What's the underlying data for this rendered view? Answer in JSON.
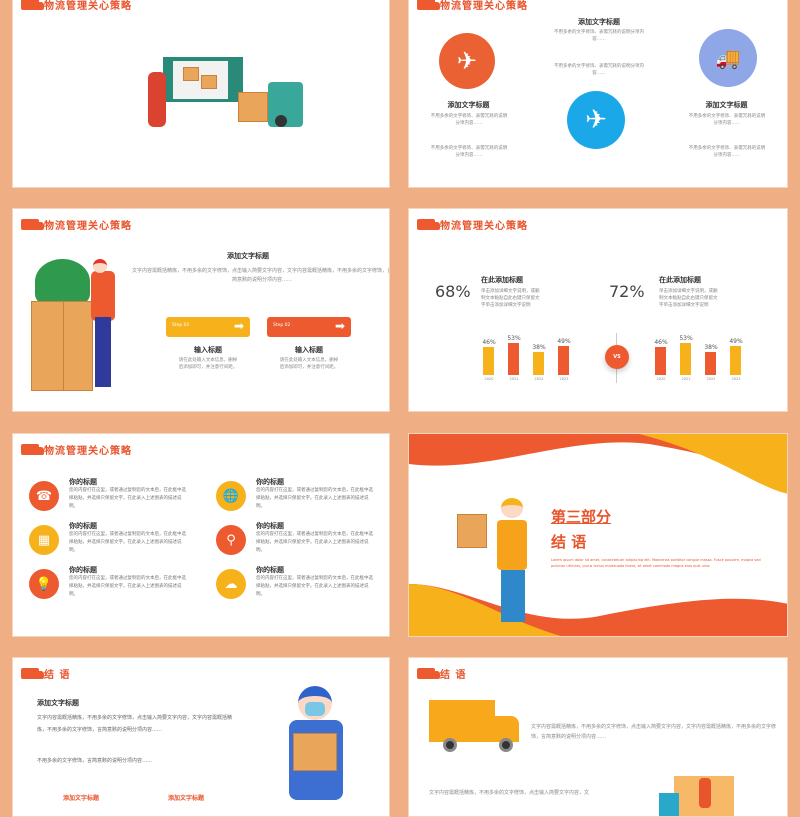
{
  "header_title": "物流管理关心策略",
  "closing_title": "结 语",
  "slide2": {
    "top_title": "添加文字标题",
    "left_title": "添加文字标题",
    "right_title": "添加文字标题",
    "small_text": "不用多余的文字修饰、表需冗耗的说明分项内容……"
  },
  "slide3": {
    "title": "添加文字标题",
    "body": "文字内容需概括精炼，不用多余的文字修饰，点击输入简要文字内容，文字内容需概括精炼，不用多余的文字修饰，言简意赅的说明分项内容……",
    "steps": [
      {
        "label": "Step 01",
        "title": "输入标题",
        "text": "请在此处输入文本信息，删掉后添加即可，并注意行间距。",
        "color": "#f7b21b"
      },
      {
        "label": "Step 02",
        "title": "输入标题",
        "text": "请在此处输入文本信息，删掉后添加即可，并注意行间距。",
        "color": "#ee5a2f"
      }
    ]
  },
  "slide4": {
    "vs": "VS",
    "panels": [
      {
        "percent": "68%",
        "title": "在此添加标题",
        "text": "单击添加详细文字说明，或删制文本黏贴自此右键只保留文字单击添加详细文字说明"
      },
      {
        "percent": "72%",
        "title": "在此添加标题",
        "text": "单击添加详细文字说明，或删制文本黏贴自此右键只保留文字单击添加详细文字说明"
      }
    ]
  },
  "chart_data": [
    {
      "type": "bar",
      "categories": [
        "2020",
        "2021",
        "2022",
        "2023"
      ],
      "values": [
        46,
        53,
        38,
        49
      ],
      "value_labels": [
        "46%",
        "53%",
        "38%",
        "49%"
      ],
      "colors": [
        "#f7b21b",
        "#ee5a2f",
        "#f7b21b",
        "#ee5a2f"
      ]
    },
    {
      "type": "bar",
      "categories": [
        "2020",
        "2021",
        "2022",
        "2023"
      ],
      "values": [
        46,
        53,
        38,
        49
      ],
      "value_labels": [
        "46%",
        "53%",
        "38%",
        "49%"
      ],
      "colors": [
        "#ee5a2f",
        "#f7b21b",
        "#ee5a2f",
        "#f7b21b"
      ]
    }
  ],
  "slide5": {
    "items": [
      {
        "title": "你的标题",
        "text": "您的内容打在这里，或者通过复制您的文本后，在此框中选择粘贴，并选择只保留文字。在此录入上述图表的描述说明。",
        "icon": "phone-icon",
        "color": "#ee5a2f"
      },
      {
        "title": "你的标题",
        "text": "您的内容打在这里，或者通过复制您的文本后，在此框中选择粘贴，并选择只保留文字。在此录入上述图表的描述说明。",
        "icon": "globe-icon",
        "color": "#f7b21b"
      },
      {
        "title": "你的标题",
        "text": "您的内容打在这里，或者通过复制您的文本后，在此框中选择粘贴，并选择只保留文字。在此录入上述图表的描述说明。",
        "icon": "calendar-icon",
        "color": "#f7b21b"
      },
      {
        "title": "你的标题",
        "text": "您的内容打在这里，或者通过复制您的文本后，在此框中选择粘贴，并选择只保留文字。在此录入上述图表的描述说明。",
        "icon": "location-pin-icon",
        "color": "#ee5a2f"
      },
      {
        "title": "你的标题",
        "text": "您的内容打在这里，或者通过复制您的文本后，在此框中选择粘贴，并选择只保留文字。在此录入上述图表的描述说明。",
        "icon": "lightbulb-icon",
        "color": "#ee5a2f"
      },
      {
        "title": "你的标题",
        "text": "您的内容打在这里，或者通过复制您的文本后，在此框中选择粘贴，并选择只保留文字。在此录入上述图表的描述说明。",
        "icon": "cloud-download-icon",
        "color": "#f7b21b"
      }
    ]
  },
  "slide6": {
    "part": "第三部分",
    "title": "结 语",
    "lorem": "Lorem ipsum dolor sit amet, consectetuer adipiscing elit. Maecenas porttitor congue massa. Fusce posuere, magna sed pulvinar ultricies, purus lectus malesuada libero, sit amet commodo magna eros quis urna."
  },
  "slide7": {
    "title": "添加文字标题",
    "body": "文字内容需概括精炼，不用多余的文字修饰，点击输入简要文字内容，文字内容需概括精炼，不用多余的文字修饰，言简意赅的说明分项内容……",
    "note": "不用多余的文字修饰，言简意赅的说明分项内容……",
    "sub1": "添加文字标题",
    "sub2": "添加文字标题"
  },
  "slide8": {
    "text1": "文字内容需概括精炼，不用多余的文字修饰，点击输入简要文字内容，文字内容需概括精炼，不用多余的文字修饰，言简意赅的说明分项内容……",
    "text2": "文字内容需概括精炼，不用多余的文字修饰，点击输入简要文字内容，文"
  }
}
